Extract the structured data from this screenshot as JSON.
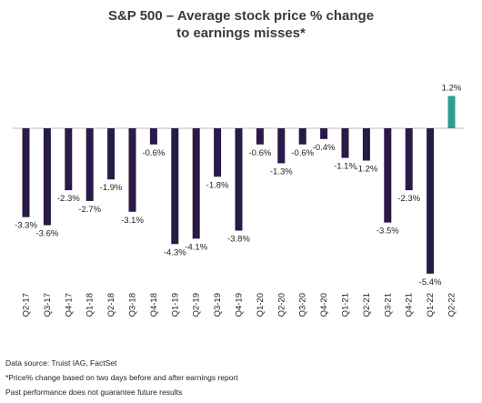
{
  "chart_data": {
    "type": "bar",
    "title": "S&P 500 – Average stock price % change",
    "subtitle": "to earnings misses*",
    "categories": [
      "Q2-17",
      "Q3-17",
      "Q4-17",
      "Q1-18",
      "Q2-18",
      "Q3-18",
      "Q4-18",
      "Q1-19",
      "Q2-19",
      "Q3-19",
      "Q4-19",
      "Q1-20",
      "Q2-20",
      "Q3-20",
      "Q4-20",
      "Q1-21",
      "Q2-21",
      "Q3-21",
      "Q4-21",
      "Q1-22",
      "Q2-22"
    ],
    "values": [
      -3.3,
      -3.6,
      -2.3,
      -2.7,
      -1.9,
      -3.1,
      -0.6,
      -4.3,
      -4.1,
      -1.8,
      -3.8,
      -0.6,
      -1.3,
      -0.6,
      -0.4,
      -1.1,
      -1.2,
      -3.5,
      -2.3,
      -5.4,
      1.2
    ],
    "data_labels": [
      "-3.3%",
      "-3.6%",
      "-2.3%",
      "-2.7%",
      "-1.9%",
      "-3.1%",
      "-0.6%",
      "-4.3%",
      "-4.1%",
      "-1.8%",
      "-3.8%",
      "-0.6%",
      "-1.3%",
      "-0.6%",
      "-0.4%",
      "-1.1%",
      "-1.2%",
      "-3.5%",
      "-2.3%",
      "-5.4%",
      "1.2%"
    ],
    "colors": {
      "negative": "#2a1a47",
      "positive": "#2e9c93",
      "axis": "#bdbdbd"
    },
    "xlabel": "",
    "ylabel": "",
    "grid": false,
    "legend": "none"
  },
  "footnotes": [
    "Data source: Truist IAG, FactSet",
    "*Price% change based on two days before and after earnings report",
    "Past performance does not guarantee future results"
  ]
}
